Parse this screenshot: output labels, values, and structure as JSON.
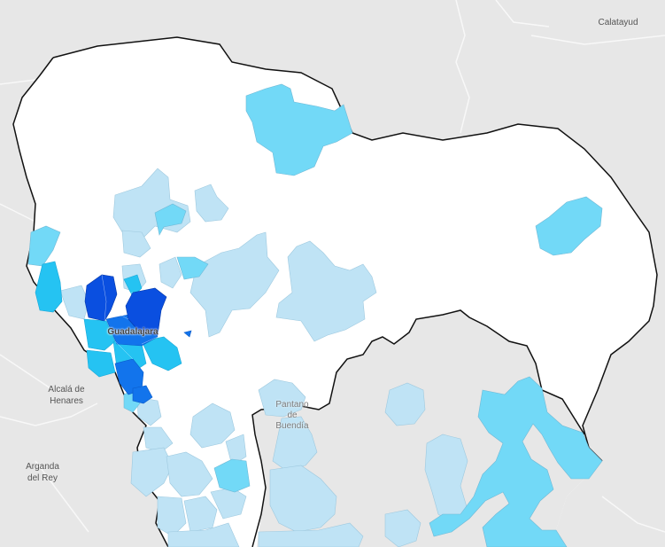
{
  "map": {
    "colors": {
      "background": "#e7e7e7",
      "region_fill": "#ffffff",
      "border": "#111111",
      "road": "#f7f7f7",
      "level_1": "#bfe3f5",
      "level_2": "#72d9f7",
      "level_3": "#25c3f2",
      "level_4": "#1274ec",
      "level_5": "#0a4fe0"
    },
    "labels": {
      "calatayud": "Calatayud",
      "guadalajara": "Guadalajara",
      "alcala_line1": "Alcalá de",
      "alcala_line2": "Henares",
      "arganda_line1": "Arganda",
      "arganda_line2": "del Rey",
      "pantano_line1": "Pantano",
      "pantano_line2": "de",
      "pantano_line3": "Buendía"
    }
  }
}
